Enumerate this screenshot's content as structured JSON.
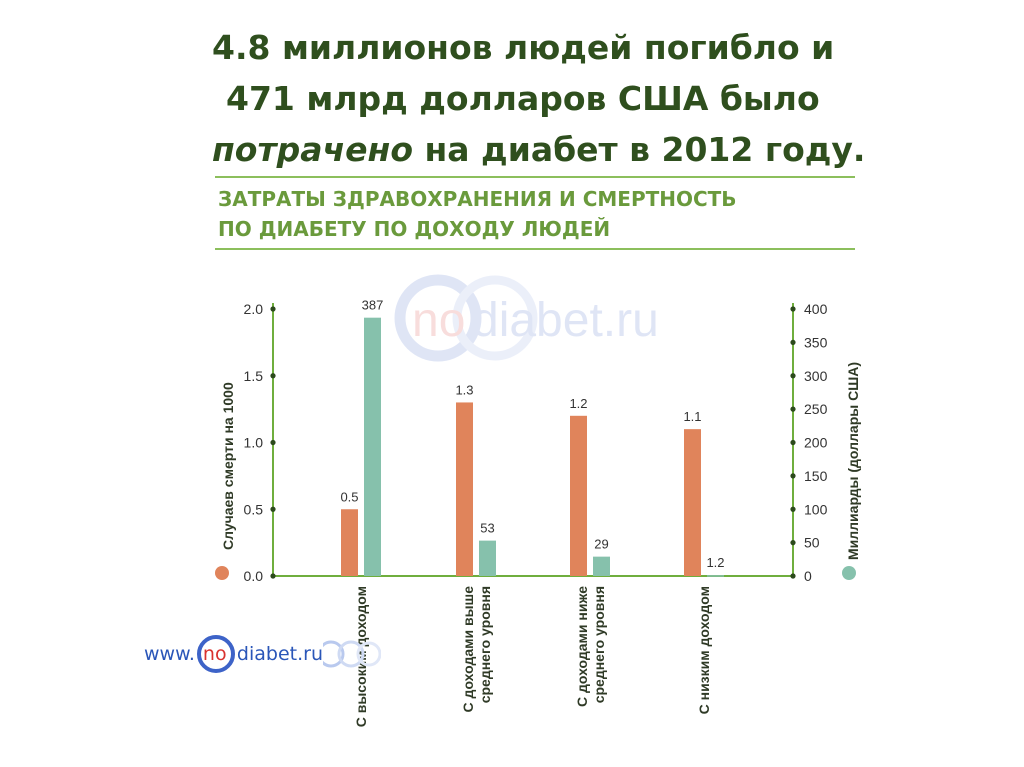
{
  "headline": {
    "line1": "4.8 миллионов людей погибло и",
    "line2": "471 млрд долларов США было",
    "line3_italic": "потрачено",
    "line3_rest": " на диабет в 2012 году."
  },
  "subtitle": {
    "line1": "ЗАТРАТЫ ЗДРАВОХРАНЕНИЯ И СМЕРТНОСТЬ",
    "line2": "ПО ДИАБЕТУ ПО ДОХОДУ ЛЮДЕЙ"
  },
  "watermark": {
    "prefix": "no",
    "rest": "diabet.ru"
  },
  "website": {
    "prefix": "www.",
    "logo_text": "no",
    "suffix": "diabet.ru"
  },
  "colors": {
    "headline": "#2f4f1e",
    "subtitle": "#6a9a3c",
    "rule": "#8cbf5c",
    "deaths_bar": "#e0845b",
    "spend_bar": "#86c1ac",
    "axis": "#6fae3d",
    "tick_dot": "#2c4a1c",
    "link": "#2a56b8"
  },
  "chart_data": {
    "type": "bar",
    "categories": [
      "С высоким доходом",
      "С доходами выше среднего уровня",
      "С доходами ниже среднего уровня",
      "С низким доходом"
    ],
    "category_lines": [
      [
        "С высоким доходом"
      ],
      [
        "С доходами выше",
        "среднего уровня"
      ],
      [
        "С доходами ниже",
        "среднего уровня"
      ],
      [
        "С низким доходом"
      ]
    ],
    "series": [
      {
        "name": "Случаев смерти на 1000",
        "axis": "left",
        "values": [
          0.5,
          1.3,
          1.2,
          1.1
        ],
        "labels": [
          "0.5",
          "1.3",
          "1.2",
          "1.1"
        ]
      },
      {
        "name": "Миллиарды (доллары США)",
        "axis": "right",
        "values": [
          387,
          53,
          29,
          1.2
        ],
        "labels": [
          "387",
          "53",
          "29",
          "1.2"
        ]
      }
    ],
    "left_axis": {
      "label": "Случаев смерти на 1000",
      "range": [
        0,
        2.0
      ],
      "ticks": [
        "0.0",
        "0.5",
        "1.0",
        "1.5",
        "2.0"
      ]
    },
    "right_axis": {
      "label": "Миллиарды (доллары США)",
      "range": [
        0,
        400
      ],
      "ticks": [
        "0",
        "50",
        "100",
        "150",
        "200",
        "250",
        "300",
        "350",
        "400"
      ]
    },
    "grid": false
  }
}
